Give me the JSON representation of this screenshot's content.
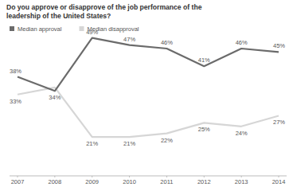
{
  "chart_data": {
    "type": "line",
    "title": "Do you approve or disapprove of the job performance of the leadership of the United States?",
    "categories": [
      "2007",
      "2008",
      "2009",
      "2010",
      "2011",
      "2012",
      "2013",
      "2014"
    ],
    "series": [
      {
        "name": "Median approval",
        "color": "#6b6b6b",
        "values": [
          38,
          34,
          49,
          47,
          46,
          41,
          46,
          45
        ],
        "value_labels": [
          "38%",
          "34%",
          "49%",
          "47%",
          "46%",
          "41%",
          "46%",
          "45%"
        ]
      },
      {
        "name": "Median disapproval",
        "color": "#d6d6d6",
        "values": [
          33,
          35,
          21,
          21,
          22,
          25,
          24,
          27
        ],
        "value_labels": [
          "33%",
          null,
          "21%",
          "21%",
          "22%",
          "25%",
          "24%",
          "27%"
        ]
      }
    ],
    "ylim": [
      10,
      55
    ],
    "tick_labels": "x",
    "grid": false,
    "data_labels": true,
    "legend": "top-left"
  }
}
